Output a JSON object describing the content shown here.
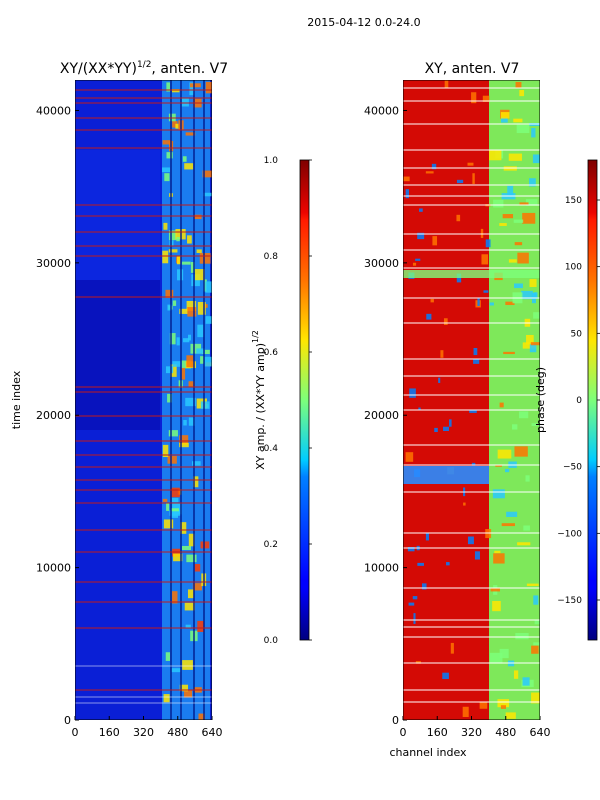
{
  "suptitle": "2015-04-12 0.0-24.0",
  "chart_data": [
    {
      "type": "heatmap",
      "title": "XY/(XX*YY)",
      "title_exponent": "1/2",
      "title_suffix": ", anten. V7",
      "xlabel": "",
      "ylabel": "time index",
      "xlim": [
        0,
        640
      ],
      "ylim": [
        0,
        42000
      ],
      "xticks": [
        0,
        160,
        320,
        480,
        640
      ],
      "yticks": [
        0,
        10000,
        20000,
        30000,
        40000
      ],
      "colormap": "jet",
      "colorbar": {
        "label": "XY amp. / (XX*YY amp)",
        "label_exponent": "1/2",
        "range": [
          0.0,
          1.0
        ],
        "ticks": [
          "0.0",
          "0.2",
          "0.4",
          "0.6",
          "0.8",
          "1.0"
        ]
      }
    },
    {
      "type": "heatmap",
      "title": "XY, anten. V7",
      "xlabel": "channel index",
      "ylabel": "",
      "xlim": [
        0,
        640
      ],
      "ylim": [
        0,
        42000
      ],
      "xticks": [
        0,
        160,
        320,
        480,
        640
      ],
      "yticks": [
        0,
        10000,
        20000,
        30000,
        40000
      ],
      "colormap": "jet",
      "colorbar": {
        "label": "phase (deg)",
        "range": [
          -180,
          180
        ],
        "ticks": [
          "−150",
          "−100",
          "−50",
          "0",
          "50",
          "100",
          "150"
        ]
      }
    }
  ]
}
